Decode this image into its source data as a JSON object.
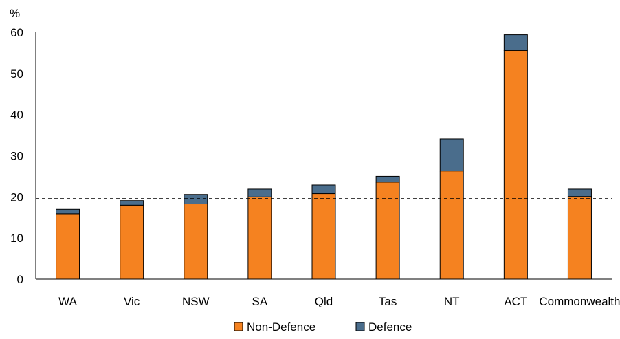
{
  "chart_data": {
    "type": "bar",
    "stacked": true,
    "title": "",
    "xlabel": "",
    "ylabel": "%",
    "ylim": [
      0,
      60
    ],
    "yticks": [
      0,
      10,
      20,
      30,
      40,
      50,
      60
    ],
    "grid": false,
    "reference_line": {
      "value": 19.6,
      "style": "dashed"
    },
    "legend_position": "bottom",
    "categories": [
      "WA",
      "Vic",
      "NSW",
      "SA",
      "Qld",
      "Tas",
      "NT",
      "ACT",
      "Commonwealth"
    ],
    "series": [
      {
        "name": "Non-Defence",
        "color": "#F58220",
        "values": [
          15.9,
          18.0,
          18.3,
          20.0,
          20.8,
          23.6,
          26.3,
          55.6,
          20.1
        ]
      },
      {
        "name": "Defence",
        "color": "#4A6D8C",
        "values": [
          1.1,
          1.1,
          2.3,
          1.9,
          2.1,
          1.4,
          7.8,
          3.8,
          1.8
        ]
      }
    ]
  }
}
